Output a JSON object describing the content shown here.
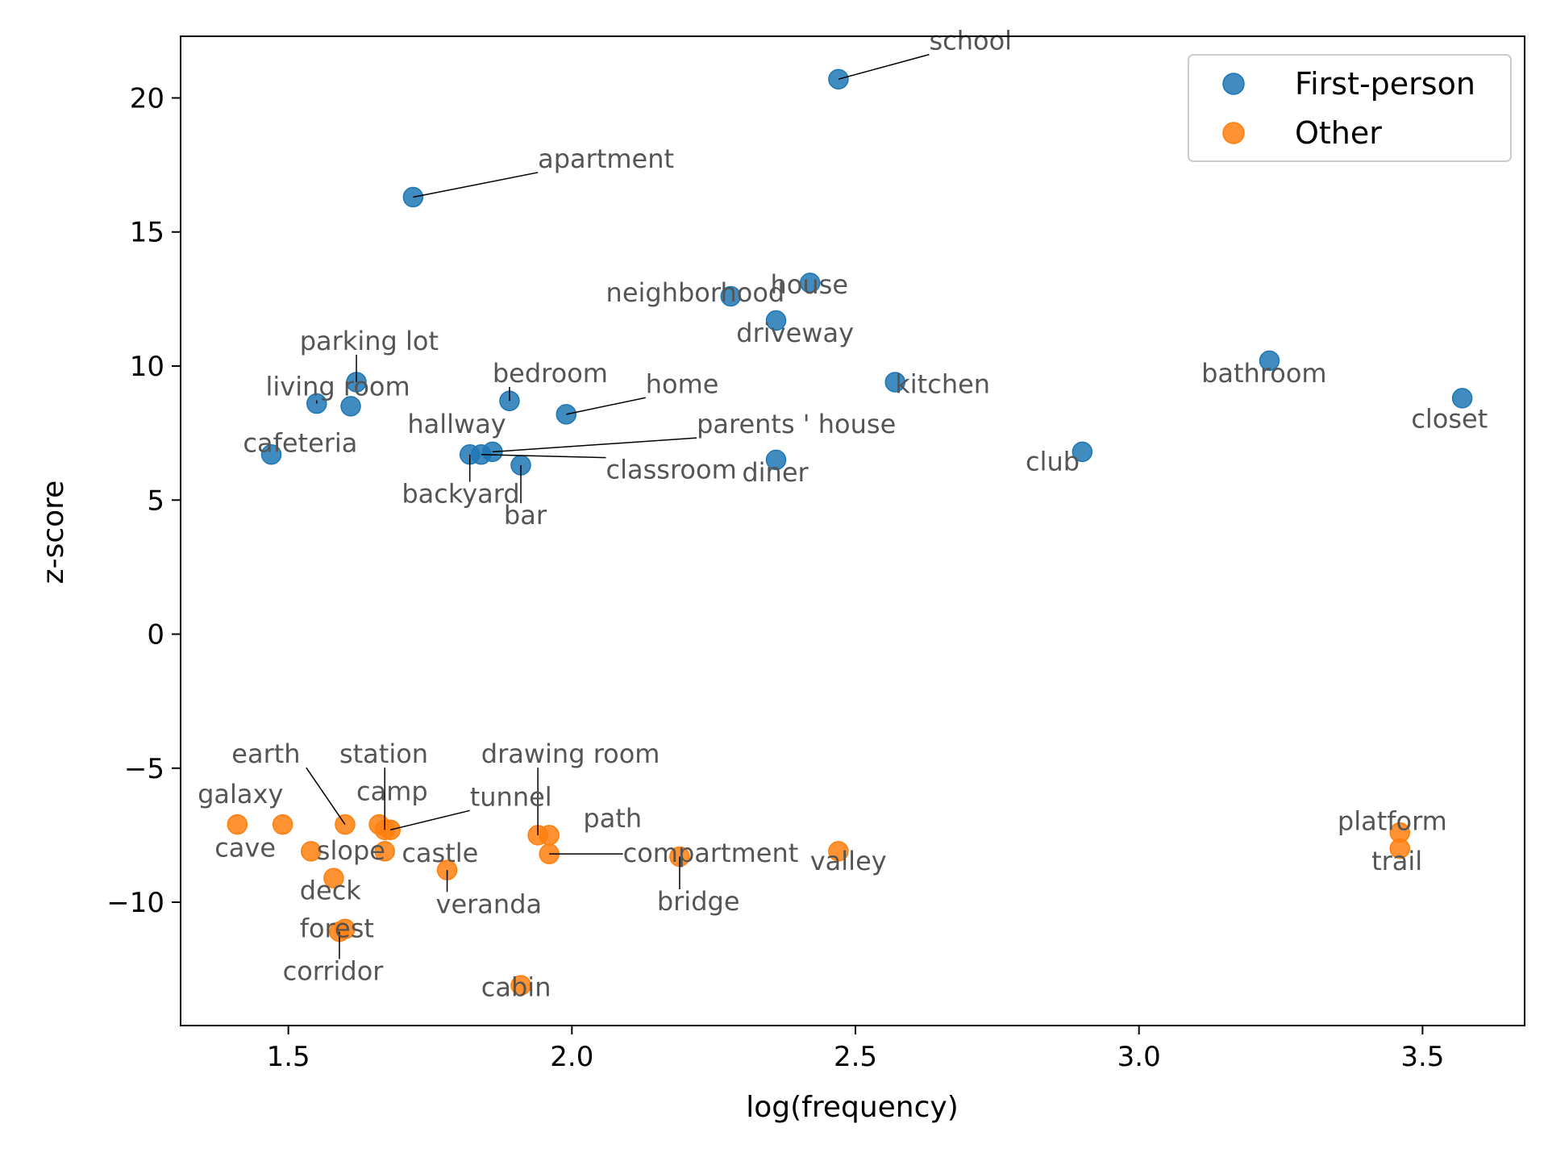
{
  "chart_data": {
    "type": "scatter",
    "title": "",
    "xlabel": "log(frequency)",
    "ylabel": "z-score",
    "xlim": [
      1.31,
      3.68
    ],
    "ylim": [
      -14.6,
      22.3
    ],
    "xticks": [
      1.5,
      2.0,
      2.5,
      3.0,
      3.5
    ],
    "xtick_labels": [
      "1.5",
      "2.0",
      "2.5",
      "3.0",
      "3.5"
    ],
    "yticks": [
      -10,
      -5,
      0,
      5,
      10,
      15,
      20
    ],
    "ytick_labels": [
      "−10",
      "−5",
      "0",
      "5",
      "10",
      "15",
      "20"
    ],
    "grid": false,
    "legend": "top-right",
    "series": [
      {
        "name": "First-person",
        "color": "#1f77b4",
        "points": [
          {
            "label": "school",
            "x": 2.47,
            "y": 20.7,
            "lx": 2.63,
            "ly": 21.8,
            "leader": true
          },
          {
            "label": "apartment",
            "x": 1.72,
            "y": 16.3,
            "lx": 1.94,
            "ly": 17.4,
            "leader": true
          },
          {
            "label": "house",
            "x": 2.42,
            "y": 13.1,
            "lx": 2.35,
            "ly": 12.7,
            "leader": false
          },
          {
            "label": "neighborhood",
            "x": 2.28,
            "y": 12.6,
            "lx": 2.06,
            "ly": 12.4,
            "leader": true
          },
          {
            "label": "driveway",
            "x": 2.36,
            "y": 11.7,
            "lx": 2.29,
            "ly": 10.9,
            "leader": false
          },
          {
            "label": "parking lot",
            "x": 1.62,
            "y": 9.4,
            "lx": 1.52,
            "ly": 10.6,
            "leader": true
          },
          {
            "label": "living room",
            "x": 1.55,
            "y": 8.6,
            "lx": 1.46,
            "ly": 8.9,
            "leader": true
          },
          {
            "label": "hallway",
            "x": 1.61,
            "y": 8.5,
            "lx": 1.71,
            "ly": 7.5,
            "leader": false
          },
          {
            "label": "bedroom",
            "x": 1.89,
            "y": 8.7,
            "lx": 1.86,
            "ly": 9.4,
            "leader": true
          },
          {
            "label": "home",
            "x": 1.99,
            "y": 8.2,
            "lx": 2.13,
            "ly": 9.0,
            "leader": true
          },
          {
            "label": "parents ' house",
            "x": 1.86,
            "y": 6.8,
            "lx": 2.22,
            "ly": 7.5,
            "leader": true
          },
          {
            "label": "backyard",
            "x": 1.82,
            "y": 6.7,
            "lx": 1.7,
            "ly": 4.9,
            "leader": true
          },
          {
            "label": "classroom",
            "x": 1.84,
            "y": 6.7,
            "lx": 2.06,
            "ly": 5.8,
            "leader": true
          },
          {
            "label": "bar",
            "x": 1.91,
            "y": 6.3,
            "lx": 1.88,
            "ly": 4.1,
            "leader": true
          },
          {
            "label": "cafeteria",
            "x": 1.47,
            "y": 6.7,
            "lx": 1.42,
            "ly": 6.8,
            "leader": true
          },
          {
            "label": "kitchen",
            "x": 2.57,
            "y": 9.4,
            "lx": 2.57,
            "ly": 9.0,
            "leader": false
          },
          {
            "label": "diner",
            "x": 2.36,
            "y": 6.5,
            "lx": 2.3,
            "ly": 5.7,
            "leader": false
          },
          {
            "label": "club",
            "x": 2.9,
            "y": 6.8,
            "lx": 2.8,
            "ly": 6.1,
            "leader": false
          },
          {
            "label": "bathroom",
            "x": 3.23,
            "y": 10.2,
            "lx": 3.11,
            "ly": 9.4,
            "leader": false
          },
          {
            "label": "closet",
            "x": 3.57,
            "y": 8.8,
            "lx": 3.48,
            "ly": 7.7,
            "leader": false
          }
        ]
      },
      {
        "name": "Other",
        "color": "#ff7f0e",
        "points": [
          {
            "label": "galaxy",
            "x": 1.41,
            "y": -7.1,
            "lx": 1.34,
            "ly": -6.3,
            "leader": false
          },
          {
            "label": "cave",
            "x": 1.49,
            "y": -7.1,
            "lx": 1.37,
            "ly": -8.3,
            "leader": false
          },
          {
            "label": "earth",
            "x": 1.6,
            "y": -7.1,
            "lx": 1.4,
            "ly": -4.8,
            "leader": true
          },
          {
            "label": "camp",
            "x": 1.66,
            "y": -7.1,
            "lx": 1.62,
            "ly": -6.2,
            "leader": false
          },
          {
            "label": "station",
            "x": 1.67,
            "y": -7.3,
            "lx": 1.59,
            "ly": -4.8,
            "leader": true
          },
          {
            "label": "tunnel",
            "x": 1.68,
            "y": -7.3,
            "lx": 1.82,
            "ly": -6.4,
            "leader": true
          },
          {
            "label": "slope",
            "x": 1.54,
            "y": -8.1,
            "lx": 1.55,
            "ly": -8.4,
            "leader": false
          },
          {
            "label": "castle",
            "x": 1.67,
            "y": -8.1,
            "lx": 1.7,
            "ly": -8.5,
            "leader": false
          },
          {
            "label": "deck",
            "x": 1.58,
            "y": -9.1,
            "lx": 1.52,
            "ly": -9.9,
            "leader": false
          },
          {
            "label": "veranda",
            "x": 1.78,
            "y": -8.8,
            "lx": 1.76,
            "ly": -10.4,
            "leader": true
          },
          {
            "label": "drawing room",
            "x": 1.94,
            "y": -7.5,
            "lx": 1.84,
            "ly": -4.8,
            "leader": true
          },
          {
            "label": "path",
            "x": 1.96,
            "y": -7.5,
            "lx": 2.02,
            "ly": -7.2,
            "leader": false
          },
          {
            "label": "compartment",
            "x": 1.96,
            "y": -8.2,
            "lx": 2.09,
            "ly": -8.5,
            "leader": true
          },
          {
            "label": "bridge",
            "x": 2.19,
            "y": -8.3,
            "lx": 2.15,
            "ly": -10.3,
            "leader": true
          },
          {
            "label": "forest",
            "x": 1.6,
            "y": -11.0,
            "lx": 1.52,
            "ly": -11.3,
            "leader": false
          },
          {
            "label": "corridor",
            "x": 1.59,
            "y": -11.1,
            "lx": 1.49,
            "ly": -12.9,
            "leader": true
          },
          {
            "label": "cabin",
            "x": 1.91,
            "y": -13.1,
            "lx": 1.84,
            "ly": -13.5,
            "leader": false
          },
          {
            "label": "valley",
            "x": 2.47,
            "y": -8.1,
            "lx": 2.42,
            "ly": -8.8,
            "leader": true
          },
          {
            "label": "platform",
            "x": 3.46,
            "y": -7.4,
            "lx": 3.35,
            "ly": -7.3,
            "leader": false
          },
          {
            "label": "trail",
            "x": 3.46,
            "y": -8.0,
            "lx": 3.41,
            "ly": -8.8,
            "leader": false
          }
        ]
      }
    ]
  }
}
